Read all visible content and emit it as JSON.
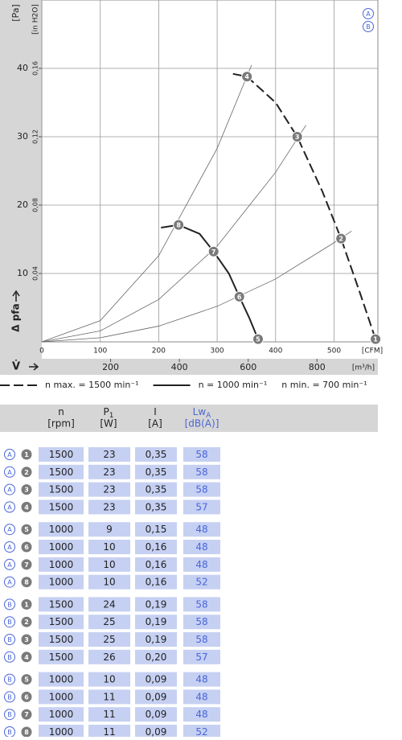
{
  "chart_data": {
    "type": "line",
    "y_label": "Δ pfa",
    "x_label": "V̇",
    "y_unit": "[Pa]",
    "y2_unit": "[in H2O]",
    "x_unit": "[CFM]",
    "x2_unit": "[m³/h]",
    "xlim": [
      0,
      575
    ],
    "xticks": [
      0,
      100,
      200,
      300,
      400,
      500
    ],
    "x2lim": [
      0,
      977
    ],
    "x2ticks": [
      200,
      400,
      600,
      800
    ],
    "ylim": [
      0,
      50
    ],
    "yticks": [
      10,
      20,
      30,
      40
    ],
    "y2lim": [
      0,
      0.2
    ],
    "y2ticks": [
      {
        "value": 0.04,
        "label": "0,04"
      },
      {
        "value": 0.08,
        "label": "0,08"
      },
      {
        "value": 0.12,
        "label": "0,12"
      },
      {
        "value": 0.16,
        "label": "0,16"
      }
    ],
    "grid": true,
    "badges": [
      "A",
      "B"
    ],
    "series": [
      {
        "name": "n max. = 1500 min⁻¹",
        "color": "#222222",
        "style": "dashed",
        "x": [
          327,
          351,
          400,
          437,
          480,
          512,
          545,
          571
        ],
        "values": [
          39.2,
          38.8,
          35,
          30,
          22,
          15.1,
          7,
          0.4
        ]
      },
      {
        "name": "n = 1000 min⁻¹",
        "color": "#222222",
        "style": "solid",
        "x": [
          204,
          234,
          270,
          294,
          320,
          338,
          355,
          370
        ],
        "values": [
          16.7,
          17.1,
          15.8,
          13.2,
          10,
          6.6,
          3.5,
          0.4
        ]
      },
      {
        "name": "n min. = 700 min⁻¹",
        "style": "none",
        "x": [],
        "values": []
      },
      {
        "color": "#666666",
        "style": "thin",
        "x": [
          0,
          100,
          200,
          300,
          359
        ],
        "values": [
          0,
          3.1,
          12.6,
          28.3,
          40.5
        ]
      },
      {
        "color": "#666666",
        "style": "thin",
        "x": [
          0,
          100,
          200,
          300,
          400,
          452
        ],
        "values": [
          0,
          1.6,
          6.2,
          14,
          24.8,
          31.7
        ]
      },
      {
        "color": "#666666",
        "style": "thin",
        "x": [
          0,
          100,
          200,
          300,
          400,
          500,
          530
        ],
        "values": [
          0,
          0.6,
          2.3,
          5.2,
          9.2,
          14.5,
          16.2
        ]
      }
    ],
    "points": [
      {
        "label": "1",
        "x": 571,
        "y": 0.4
      },
      {
        "label": "2",
        "x": 512,
        "y": 15.1
      },
      {
        "label": "3",
        "x": 437,
        "y": 30
      },
      {
        "label": "4",
        "x": 351,
        "y": 38.8
      },
      {
        "label": "5",
        "x": 370,
        "y": 0.4
      },
      {
        "label": "6",
        "x": 338,
        "y": 6.6
      },
      {
        "label": "7",
        "x": 294,
        "y": 13.2
      },
      {
        "label": "8",
        "x": 234,
        "y": 17.1
      }
    ]
  },
  "table": {
    "header": [
      {
        "label": "n",
        "unit": "[rpm]"
      },
      {
        "label": "P",
        "sub": "1",
        "unit": "[W]"
      },
      {
        "label": "I",
        "unit": "[A]"
      },
      {
        "label": "Lw",
        "sub": "A",
        "unit": "[dB(A)]"
      }
    ],
    "groups": [
      [
        [
          "A",
          "1",
          "1500",
          "23",
          "0,35",
          "58"
        ],
        [
          "A",
          "2",
          "1500",
          "23",
          "0,35",
          "58"
        ],
        [
          "A",
          "3",
          "1500",
          "23",
          "0,35",
          "58"
        ],
        [
          "A",
          "4",
          "1500",
          "23",
          "0,35",
          "57"
        ]
      ],
      [
        [
          "A",
          "5",
          "1000",
          "9",
          "0,15",
          "48"
        ],
        [
          "A",
          "6",
          "1000",
          "10",
          "0,16",
          "48"
        ],
        [
          "A",
          "7",
          "1000",
          "10",
          "0,16",
          "48"
        ],
        [
          "A",
          "8",
          "1000",
          "10",
          "0,16",
          "52"
        ]
      ],
      [
        [
          "B",
          "1",
          "1500",
          "24",
          "0,19",
          "58"
        ],
        [
          "B",
          "2",
          "1500",
          "25",
          "0,19",
          "58"
        ],
        [
          "B",
          "3",
          "1500",
          "25",
          "0,19",
          "58"
        ],
        [
          "B",
          "4",
          "1500",
          "26",
          "0,20",
          "57"
        ]
      ],
      [
        [
          "B",
          "5",
          "1000",
          "10",
          "0,09",
          "48"
        ],
        [
          "B",
          "6",
          "1000",
          "11",
          "0,09",
          "48"
        ],
        [
          "B",
          "7",
          "1000",
          "11",
          "0,09",
          "48"
        ],
        [
          "B",
          "8",
          "1000",
          "11",
          "0,09",
          "52"
        ]
      ]
    ]
  }
}
